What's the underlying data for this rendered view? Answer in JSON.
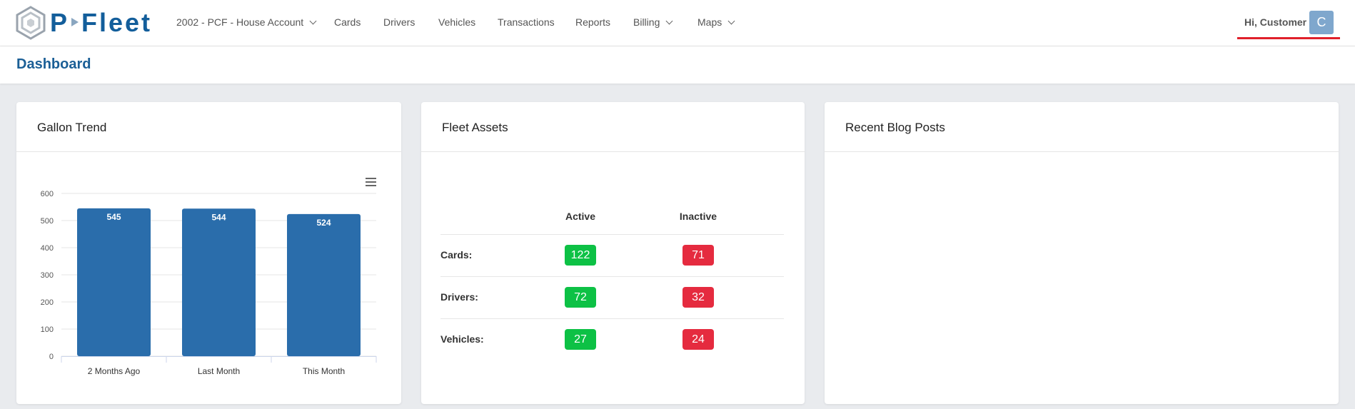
{
  "logo": {
    "left": "P",
    "right": "Fleet"
  },
  "nav": [
    "2002 - PCF - House Account",
    "Cards",
    "Drivers",
    "Vehicles",
    "Transactions",
    "Reports",
    "Billing",
    "Maps"
  ],
  "user": {
    "greeting": "Hi, Customer",
    "avatar": "C"
  },
  "page_title": "Dashboard",
  "chart_data": {
    "type": "bar",
    "title": "Gallon Trend",
    "categories": [
      "2 Months Ago",
      "Last Month",
      "This Month"
    ],
    "values": [
      545,
      544,
      524
    ],
    "color": "#2a6dab",
    "ylim": [
      0,
      600
    ],
    "yticks": [
      0,
      100,
      200,
      300,
      400,
      500,
      600
    ],
    "grid": true
  },
  "fleet_assets": {
    "title": "Fleet Assets",
    "columns": [
      "Active",
      "Inactive"
    ],
    "rows": [
      {
        "label": "Cards:",
        "active": 122,
        "inactive": 71
      },
      {
        "label": "Drivers:",
        "active": 72,
        "inactive": 32
      },
      {
        "label": "Vehicles:",
        "active": 27,
        "inactive": 24
      }
    ]
  },
  "blog": {
    "title": "Recent Blog Posts"
  }
}
